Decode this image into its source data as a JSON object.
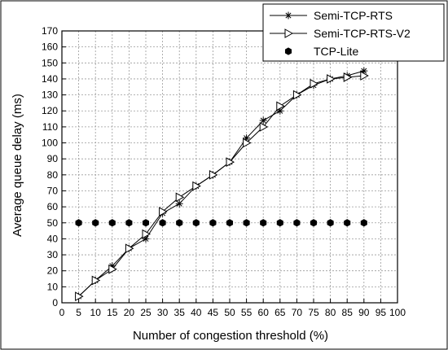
{
  "chart_data": {
    "type": "line",
    "title": "",
    "xlabel": "Number of congestion threshold (%)",
    "ylabel": "Average queue delay (ms)",
    "xlim": [
      0,
      100
    ],
    "ylim": [
      0,
      170
    ],
    "xticks": [
      0,
      5,
      10,
      15,
      20,
      25,
      30,
      35,
      40,
      45,
      50,
      55,
      60,
      65,
      70,
      75,
      80,
      85,
      90,
      95,
      100
    ],
    "yticks": [
      0,
      10,
      20,
      30,
      40,
      50,
      60,
      70,
      80,
      90,
      100,
      110,
      120,
      130,
      140,
      150,
      160,
      170
    ],
    "grid": true,
    "legend_position": "top-right",
    "x": [
      5,
      10,
      15,
      20,
      25,
      30,
      35,
      40,
      45,
      50,
      55,
      60,
      65,
      70,
      75,
      80,
      85,
      90
    ],
    "series": [
      {
        "name": "Semi-TCP-RTS",
        "marker": "asterisk",
        "values": [
          4,
          14,
          23,
          34,
          40,
          56,
          62,
          73,
          80,
          88,
          103,
          114,
          120,
          130,
          136,
          140,
          142,
          145
        ]
      },
      {
        "name": "Semi-TCP-RTS-V2",
        "marker": "open-triangle-right",
        "values": [
          4,
          14,
          21,
          34,
          43,
          57,
          66,
          73,
          80,
          88,
          100,
          110,
          123,
          130,
          137,
          140,
          141,
          142
        ]
      },
      {
        "name": "TCP-Lite",
        "marker": "filled-hexagon",
        "values": [
          50,
          50,
          50,
          50,
          50,
          50,
          50,
          50,
          50,
          50,
          50,
          50,
          50,
          50,
          50,
          50,
          50,
          50
        ]
      }
    ]
  }
}
